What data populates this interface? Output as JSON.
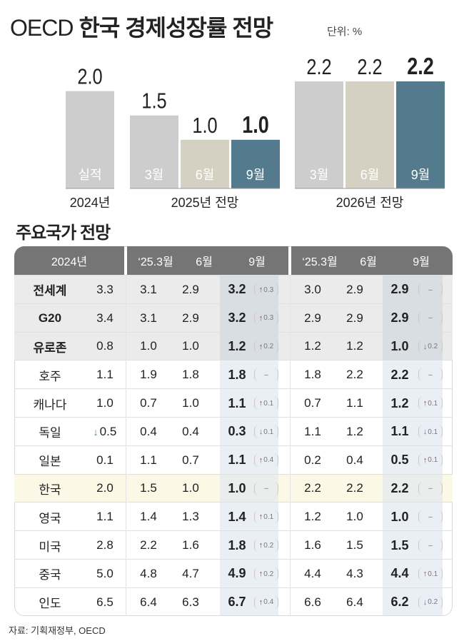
{
  "title": {
    "prefix": "OECD",
    "main": "한국 경제성장률 전망",
    "unit": "단위: %"
  },
  "chart_data": {
    "type": "bar",
    "groups": [
      "2024년",
      "2025년 전망",
      "2026년 전망"
    ],
    "bars": [
      {
        "group": "2024년",
        "label": "실적",
        "value": 2.0,
        "value_text": "2.0",
        "color": "#cdcdcd",
        "bold": false
      },
      {
        "group": "2025년 전망",
        "label": "3월",
        "value": 1.5,
        "value_text": "1.5",
        "color": "#cdcdcd",
        "bold": false
      },
      {
        "group": "2025년 전망",
        "label": "6월",
        "value": 1.0,
        "value_text": "1.0",
        "color": "#d5d1c2",
        "bold": false
      },
      {
        "group": "2025년 전망",
        "label": "9월",
        "value": 1.0,
        "value_text": "1.0",
        "color": "#537a8d",
        "bold": true
      },
      {
        "group": "2026년 전망",
        "label": "3월",
        "value": 2.2,
        "value_text": "2.2",
        "color": "#cdcdcd",
        "bold": false
      },
      {
        "group": "2026년 전망",
        "label": "6월",
        "value": 2.2,
        "value_text": "2.2",
        "color": "#d5d1c2",
        "bold": false
      },
      {
        "group": "2026년 전망",
        "label": "9월",
        "value": 2.2,
        "value_text": "2.2",
        "color": "#537a8d",
        "bold": true
      }
    ],
    "ylim": [
      0,
      2.2
    ]
  },
  "table": {
    "title": "주요국가 전망",
    "headers": {
      "y2024": "2024년",
      "y2025": [
        "‘25.3월",
        "6월",
        "9월"
      ],
      "y2026": [
        "‘25.3월",
        "6월",
        "9월"
      ]
    },
    "rows": [
      {
        "name": "전세계",
        "type": "agg",
        "v2024": "3.3",
        "d2024": "",
        "y25": [
          "3.1",
          "2.9",
          "3.2"
        ],
        "c25": {
          "dir": "up",
          "v": "0.3"
        },
        "y26": [
          "3.0",
          "2.9",
          "2.9"
        ],
        "c26": {
          "dir": "none",
          "v": "–"
        }
      },
      {
        "name": "G20",
        "type": "agg",
        "v2024": "3.4",
        "d2024": "",
        "y25": [
          "3.1",
          "2.9",
          "3.2"
        ],
        "c25": {
          "dir": "up",
          "v": "0.3"
        },
        "y26": [
          "2.9",
          "2.9",
          "2.9"
        ],
        "c26": {
          "dir": "none",
          "v": "–"
        }
      },
      {
        "name": "유로존",
        "type": "agg",
        "v2024": "0.8",
        "d2024": "",
        "y25": [
          "1.0",
          "1.0",
          "1.2"
        ],
        "c25": {
          "dir": "up",
          "v": "0.2"
        },
        "y26": [
          "1.2",
          "1.2",
          "1.0"
        ],
        "c26": {
          "dir": "down",
          "v": "0.2"
        }
      },
      {
        "name": "호주",
        "type": "normal",
        "v2024": "1.1",
        "d2024": "",
        "y25": [
          "1.9",
          "1.8",
          "1.8"
        ],
        "c25": {
          "dir": "none",
          "v": "–"
        },
        "y26": [
          "1.8",
          "2.2",
          "2.2"
        ],
        "c26": {
          "dir": "none",
          "v": "–"
        }
      },
      {
        "name": "캐나다",
        "type": "normal",
        "v2024": "1.0",
        "d2024": "",
        "y25": [
          "0.7",
          "1.0",
          "1.1"
        ],
        "c25": {
          "dir": "up",
          "v": "0.1"
        },
        "y26": [
          "0.7",
          "1.1",
          "1.2"
        ],
        "c26": {
          "dir": "up",
          "v": "0.1"
        }
      },
      {
        "name": "독일",
        "type": "normal",
        "v2024": "0.5",
        "d2024": "down",
        "y25": [
          "0.4",
          "0.4",
          "0.3"
        ],
        "c25": {
          "dir": "down",
          "v": "0.1"
        },
        "y26": [
          "1.1",
          "1.2",
          "1.1"
        ],
        "c26": {
          "dir": "down",
          "v": "0.1"
        }
      },
      {
        "name": "일본",
        "type": "normal",
        "v2024": "0.1",
        "d2024": "",
        "y25": [
          "1.1",
          "0.7",
          "1.1"
        ],
        "c25": {
          "dir": "up",
          "v": "0.4"
        },
        "y26": [
          "0.2",
          "0.4",
          "0.5"
        ],
        "c26": {
          "dir": "up",
          "v": "0.1"
        }
      },
      {
        "name": "한국",
        "type": "kr",
        "v2024": "2.0",
        "d2024": "",
        "y25": [
          "1.5",
          "1.0",
          "1.0"
        ],
        "c25": {
          "dir": "none",
          "v": "–"
        },
        "y26": [
          "2.2",
          "2.2",
          "2.2"
        ],
        "c26": {
          "dir": "none",
          "v": "–"
        }
      },
      {
        "name": "영국",
        "type": "normal",
        "v2024": "1.1",
        "d2024": "",
        "y25": [
          "1.4",
          "1.3",
          "1.4"
        ],
        "c25": {
          "dir": "up",
          "v": "0.1"
        },
        "y26": [
          "1.2",
          "1.0",
          "1.0"
        ],
        "c26": {
          "dir": "none",
          "v": "–"
        }
      },
      {
        "name": "미국",
        "type": "normal",
        "v2024": "2.8",
        "d2024": "",
        "y25": [
          "2.2",
          "1.6",
          "1.8"
        ],
        "c25": {
          "dir": "up",
          "v": "0.2"
        },
        "y26": [
          "1.6",
          "1.5",
          "1.5"
        ],
        "c26": {
          "dir": "none",
          "v": "–"
        }
      },
      {
        "name": "중국",
        "type": "normal",
        "v2024": "5.0",
        "d2024": "",
        "y25": [
          "4.8",
          "4.7",
          "4.9"
        ],
        "c25": {
          "dir": "up",
          "v": "0.2"
        },
        "y26": [
          "4.4",
          "4.3",
          "4.4"
        ],
        "c26": {
          "dir": "up",
          "v": "0.1"
        }
      },
      {
        "name": "인도",
        "type": "normal",
        "v2024": "6.5",
        "d2024": "",
        "y25": [
          "6.4",
          "6.3",
          "6.7"
        ],
        "c25": {
          "dir": "up",
          "v": "0.4"
        },
        "y26": [
          "6.6",
          "6.4",
          "6.2"
        ],
        "c26": {
          "dir": "down",
          "v": "0.2"
        }
      }
    ]
  },
  "source": "자료: 기획재정부, OECD",
  "colors": {
    "header_bg": "#757575",
    "up": "#d0262a",
    "down": "#2f86c8",
    "accent": "#537a8d"
  }
}
